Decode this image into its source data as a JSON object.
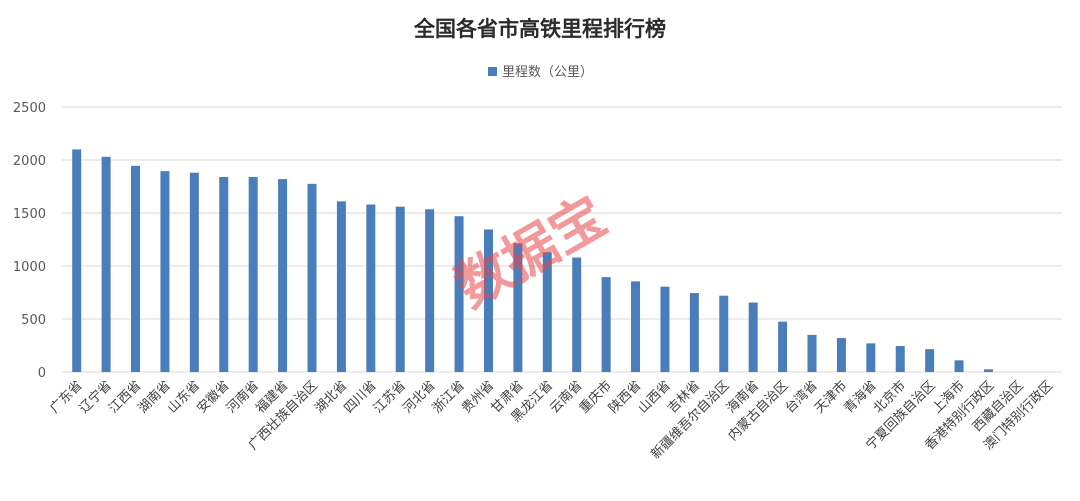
{
  "watermark": "数据宝",
  "chart_data": {
    "type": "bar",
    "title": "全国各省市高铁里程排行榜",
    "legend": {
      "entries": [
        "里程数（公里）"
      ],
      "placement": "top"
    },
    "colors": {
      "bar": "#4a7ebb",
      "grid": "#d9d9d9"
    },
    "grid": true,
    "ylim": [
      0,
      2500
    ],
    "yticks": [
      0,
      500,
      1000,
      1500,
      2000,
      2500
    ],
    "xlabel": "",
    "ylabel": "",
    "categories": [
      "广东省",
      "辽宁省",
      "江西省",
      "湖南省",
      "山东省",
      "安徽省",
      "河南省",
      "福建省",
      "广西壮族自治区",
      "湖北省",
      "四川省",
      "江苏省",
      "河北省",
      "浙江省",
      "贵州省",
      "甘肃省",
      "黑龙江省",
      "云南省",
      "重庆市",
      "陕西省",
      "山西省",
      "吉林省",
      "新疆维吾尔自治区",
      "海南省",
      "内蒙古自治区",
      "台湾省",
      "天津市",
      "青海省",
      "北京市",
      "宁夏回族自治区",
      "上海市",
      "香港特别行政区",
      "西藏自治区",
      "澳门特别行政区"
    ],
    "series": [
      {
        "name": "里程数（公里）",
        "values": [
          2100,
          2030,
          1945,
          1895,
          1880,
          1840,
          1840,
          1820,
          1775,
          1610,
          1580,
          1560,
          1535,
          1470,
          1345,
          1215,
          1130,
          1080,
          895,
          855,
          805,
          745,
          720,
          655,
          475,
          350,
          320,
          270,
          245,
          215,
          110,
          25,
          0,
          0
        ]
      }
    ]
  }
}
